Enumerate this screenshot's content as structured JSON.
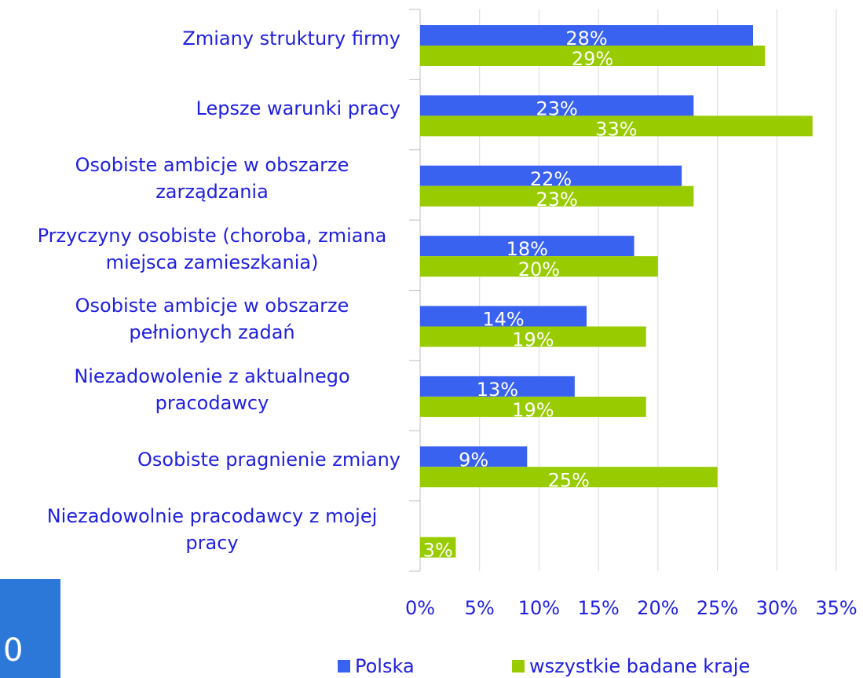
{
  "slide_number": "0",
  "chart_data": {
    "type": "hbar",
    "categories": [
      "Zmiany struktury firmy",
      "Lepsze warunki pracy",
      "Osobiste ambicje w obszarze zarządzania",
      "Przyczyny osobiste (choroba, zmiana miejsca zamieszkania)",
      "Osobiste ambicje w obszarze pełnionych zadań",
      "Niezadowolenie z aktualnego pracodawcy",
      "Osobiste pragnienie zmiany",
      "Niezadowolnie pracodawcy z mojej pracy"
    ],
    "series": [
      {
        "name": "Polska",
        "color": "#3a62f0",
        "values": [
          28,
          23,
          22,
          18,
          14,
          13,
          9,
          null
        ],
        "value_labels": [
          "28%",
          "23%",
          "22%",
          "18%",
          "14%",
          "13%",
          "9%",
          null
        ]
      },
      {
        "name": "wszystkie badane kraje",
        "color": "#99cc00",
        "values": [
          29,
          33,
          23,
          20,
          19,
          19,
          25,
          3
        ],
        "value_labels": [
          "29%",
          "33%",
          "23%",
          "20%",
          "19%",
          "19%",
          "25%",
          "3%"
        ]
      }
    ],
    "xlim": [
      0,
      35
    ],
    "xticks": [
      {
        "value": 0,
        "label": "0%"
      },
      {
        "value": 5,
        "label": "5%"
      },
      {
        "value": 10,
        "label": "10%"
      },
      {
        "value": 15,
        "label": "15%"
      },
      {
        "value": 20,
        "label": "20%"
      },
      {
        "value": 25,
        "label": "25%"
      },
      {
        "value": 30,
        "label": "30%"
      },
      {
        "value": 35,
        "label": "35%"
      }
    ],
    "grid": true
  }
}
